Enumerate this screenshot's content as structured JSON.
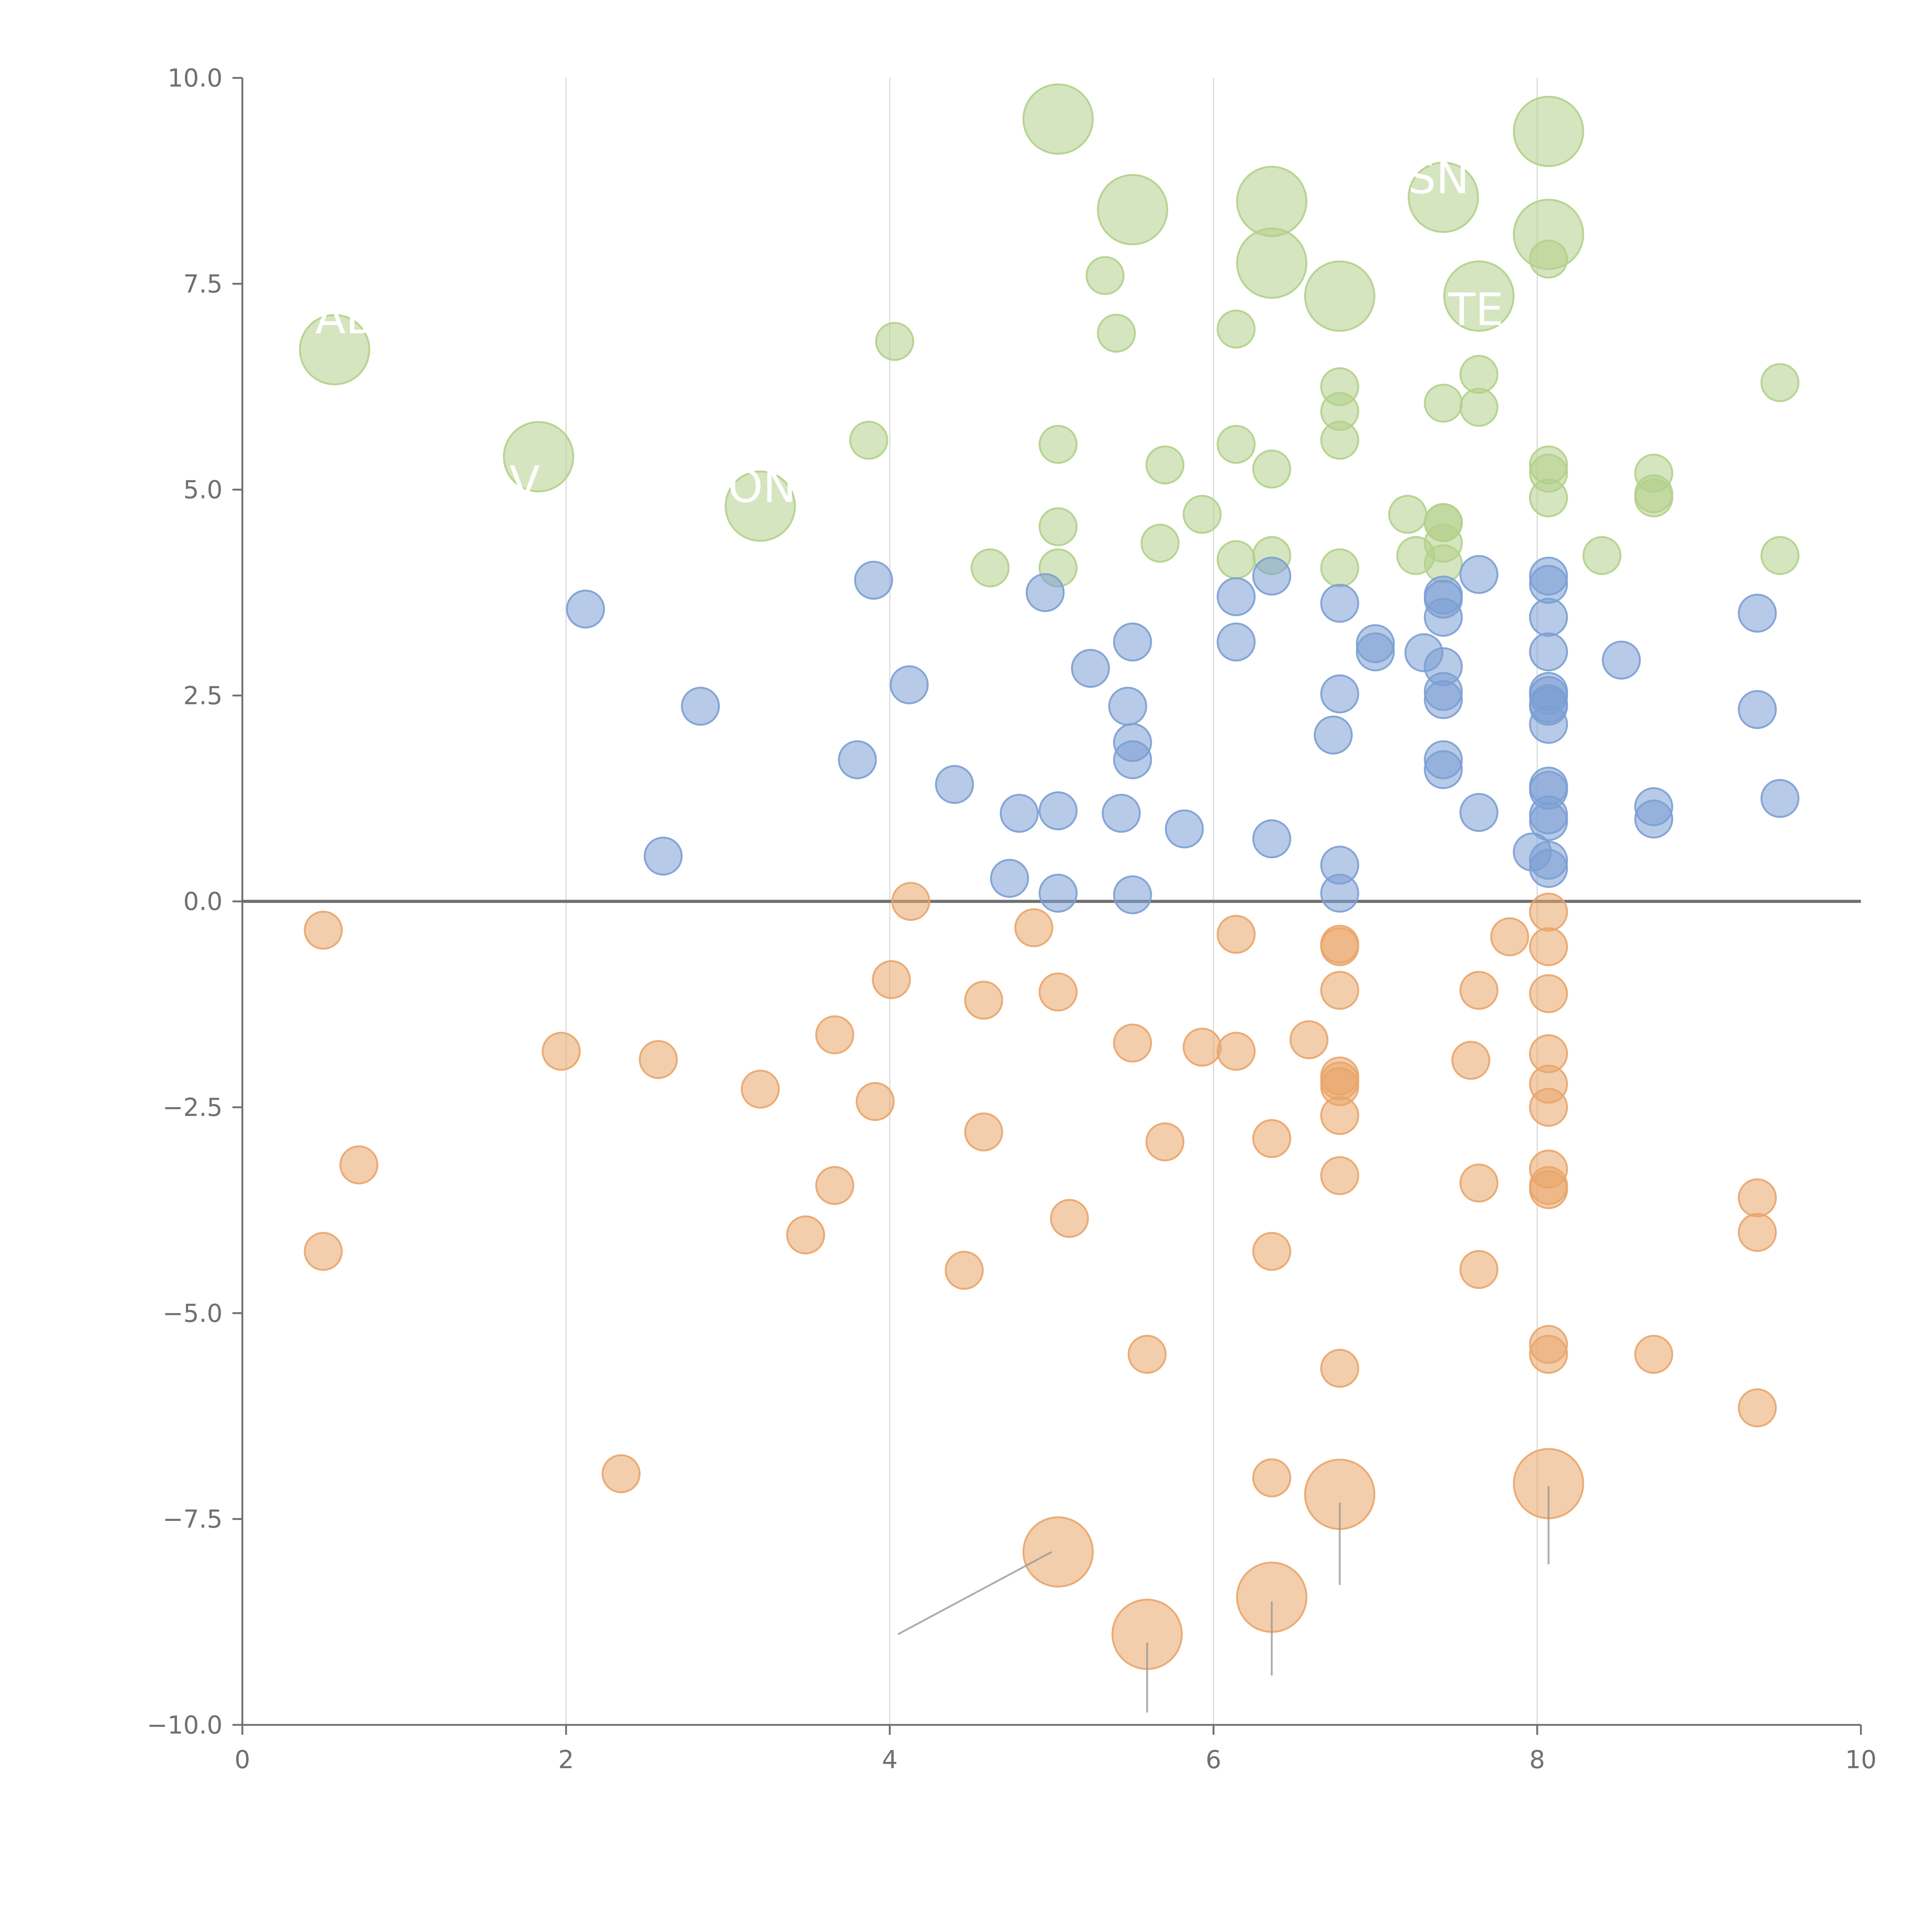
{
  "chart_data": {
    "type": "scatter",
    "title": "",
    "xlabel": "",
    "ylabel": "",
    "xlim": [
      0,
      10
    ],
    "ylim": [
      -10,
      10
    ],
    "grid": "vertical at x ticks",
    "x_ticks": [
      "0",
      "2",
      "4",
      "6",
      "8",
      "10"
    ],
    "y_ticks": [
      "10.0",
      "7.5",
      "5.0",
      "2.5",
      "0.0",
      "−2.5",
      "−5.0",
      "−7.5",
      "−10.0"
    ],
    "y_tick_values": [
      10,
      7.5,
      5,
      2.5,
      0,
      -2.5,
      -5,
      -7.5,
      -10
    ],
    "x_tick_values": [
      0,
      2,
      4,
      6,
      8,
      10
    ],
    "colors": {
      "green": "#b3d08a",
      "blue": "#7b9fd3",
      "orange": "#e9a56a"
    },
    "series": [
      {
        "name": "green",
        "color": "#b3d08a",
        "points": [
          [
            0.57,
            6.7,
            3.5
          ],
          [
            1.83,
            5.4,
            3.5
          ],
          [
            3.2,
            4.8,
            3.5
          ],
          [
            5.04,
            9.5,
            3.5
          ],
          [
            5.5,
            8.4,
            3.5
          ],
          [
            6.36,
            8.5,
            3.5
          ],
          [
            6.36,
            7.75,
            3.5
          ],
          [
            6.78,
            7.35,
            3.5
          ],
          [
            7.42,
            8.55,
            3.5
          ],
          [
            7.64,
            7.35,
            3.5
          ],
          [
            8.07,
            9.35,
            3.5
          ],
          [
            8.07,
            8.1,
            3.5
          ],
          [
            4.03,
            6.8,
            1
          ],
          [
            5.33,
            7.6,
            1
          ],
          [
            5.4,
            6.9,
            1
          ],
          [
            6.14,
            6.95,
            1
          ],
          [
            3.87,
            5.6,
            1
          ],
          [
            5.04,
            5.55,
            1
          ],
          [
            5.7,
            5.3,
            1
          ],
          [
            6.14,
            5.55,
            1
          ],
          [
            6.36,
            5.25,
            1
          ],
          [
            6.78,
            6.25,
            1
          ],
          [
            6.78,
            5.95,
            1
          ],
          [
            6.78,
            5.6,
            1
          ],
          [
            7.42,
            6.05,
            1
          ],
          [
            7.64,
            6.4,
            1
          ],
          [
            7.64,
            6.0,
            1
          ],
          [
            8.07,
            7.8,
            1
          ],
          [
            8.07,
            5.3,
            1
          ],
          [
            8.07,
            5.2,
            1
          ],
          [
            8.07,
            4.9,
            1
          ],
          [
            8.72,
            5.2,
            1
          ],
          [
            8.72,
            4.95,
            1
          ],
          [
            8.72,
            4.9,
            1
          ],
          [
            9.5,
            6.3,
            1
          ],
          [
            9.5,
            4.2,
            1
          ],
          [
            8.4,
            4.2,
            1
          ],
          [
            4.62,
            4.05,
            1
          ],
          [
            5.04,
            4.55,
            1
          ],
          [
            5.04,
            4.05,
            1
          ],
          [
            5.67,
            4.35,
            1
          ],
          [
            5.93,
            4.7,
            1
          ],
          [
            6.14,
            4.15,
            1
          ],
          [
            6.36,
            4.2,
            1
          ],
          [
            6.78,
            4.05,
            1
          ],
          [
            7.2,
            4.7,
            1
          ],
          [
            7.25,
            4.2,
            1
          ],
          [
            7.42,
            4.6,
            1
          ],
          [
            7.42,
            4.6,
            1
          ],
          [
            7.42,
            4.35,
            1
          ],
          [
            7.42,
            4.1,
            1
          ]
        ]
      },
      {
        "name": "blue",
        "color": "#7b9fd3",
        "points": [
          [
            2.12,
            3.55,
            1
          ],
          [
            2.83,
            2.37,
            1
          ],
          [
            2.6,
            0.55,
            1
          ],
          [
            3.8,
            1.72,
            1
          ],
          [
            3.9,
            3.9,
            1
          ],
          [
            4.12,
            2.63,
            1
          ],
          [
            4.4,
            1.42,
            1
          ],
          [
            4.74,
            0.28,
            1
          ],
          [
            4.8,
            1.07,
            1
          ],
          [
            4.96,
            3.75,
            1
          ],
          [
            5.04,
            1.1,
            1
          ],
          [
            5.04,
            0.1,
            1
          ],
          [
            5.24,
            2.83,
            1
          ],
          [
            5.43,
            1.07,
            1
          ],
          [
            5.47,
            2.37,
            1
          ],
          [
            5.5,
            3.15,
            1
          ],
          [
            5.5,
            1.93,
            1
          ],
          [
            5.5,
            1.72,
            1
          ],
          [
            5.5,
            0.08,
            1
          ],
          [
            5.82,
            0.88,
            1
          ],
          [
            6.14,
            3.7,
            1
          ],
          [
            6.14,
            3.15,
            1
          ],
          [
            6.36,
            3.95,
            1
          ],
          [
            6.36,
            0.76,
            1
          ],
          [
            6.74,
            2.02,
            1
          ],
          [
            6.78,
            3.62,
            1
          ],
          [
            6.78,
            2.52,
            1
          ],
          [
            6.78,
            0.44,
            1
          ],
          [
            6.78,
            0.1,
            1
          ],
          [
            7.0,
            3.13,
            1
          ],
          [
            7.0,
            3.03,
            1
          ],
          [
            7.3,
            3.02,
            1
          ],
          [
            7.42,
            3.72,
            1
          ],
          [
            7.42,
            3.67,
            1
          ],
          [
            7.42,
            3.45,
            1
          ],
          [
            7.42,
            2.85,
            1
          ],
          [
            7.42,
            2.55,
            1
          ],
          [
            7.42,
            2.45,
            1
          ],
          [
            7.42,
            1.72,
            1
          ],
          [
            7.42,
            1.6,
            1
          ],
          [
            7.64,
            3.97,
            1
          ],
          [
            7.64,
            1.08,
            1
          ],
          [
            7.97,
            0.6,
            1
          ],
          [
            8.07,
            3.95,
            1
          ],
          [
            8.07,
            3.85,
            1
          ],
          [
            8.07,
            3.45,
            1
          ],
          [
            8.07,
            3.03,
            1
          ],
          [
            8.07,
            2.55,
            1
          ],
          [
            8.07,
            2.5,
            1
          ],
          [
            8.07,
            2.4,
            1
          ],
          [
            8.07,
            2.37,
            1
          ],
          [
            8.07,
            2.15,
            1
          ],
          [
            8.07,
            1.4,
            1
          ],
          [
            8.07,
            1.35,
            1
          ],
          [
            8.07,
            1.05,
            1
          ],
          [
            8.07,
            0.97,
            1
          ],
          [
            8.07,
            0.5,
            1
          ],
          [
            8.07,
            0.4,
            1
          ],
          [
            8.52,
            2.93,
            1
          ],
          [
            8.72,
            1.15,
            1
          ],
          [
            8.72,
            1.0,
            1
          ],
          [
            9.36,
            3.5,
            1
          ],
          [
            9.36,
            2.33,
            1
          ],
          [
            9.5,
            1.25,
            1
          ]
        ]
      },
      {
        "name": "orange",
        "color": "#e9a56a",
        "points": [
          [
            0.5,
            -0.35,
            1
          ],
          [
            0.5,
            -4.25,
            1
          ],
          [
            0.72,
            -3.2,
            1
          ],
          [
            1.97,
            -1.82,
            1
          ],
          [
            2.57,
            -1.92,
            1
          ],
          [
            2.34,
            -6.95,
            1
          ],
          [
            3.2,
            -2.28,
            1
          ],
          [
            3.48,
            -4.05,
            1
          ],
          [
            3.66,
            -1.62,
            1
          ],
          [
            3.66,
            -3.45,
            1
          ],
          [
            3.91,
            -2.43,
            1
          ],
          [
            4.01,
            -0.95,
            1
          ],
          [
            4.13,
            0.0,
            1
          ],
          [
            4.46,
            -4.48,
            1
          ],
          [
            4.58,
            -1.2,
            1
          ],
          [
            4.58,
            -2.8,
            1
          ],
          [
            4.89,
            -0.32,
            1
          ],
          [
            5.04,
            -1.1,
            1
          ],
          [
            5.11,
            -3.85,
            1
          ],
          [
            5.5,
            -1.72,
            1
          ],
          [
            5.59,
            -5.5,
            1
          ],
          [
            5.7,
            -2.92,
            1
          ],
          [
            5.93,
            -1.77,
            1
          ],
          [
            6.14,
            -0.4,
            1
          ],
          [
            6.14,
            -1.82,
            1
          ],
          [
            6.36,
            -2.88,
            1
          ],
          [
            6.36,
            -4.25,
            1
          ],
          [
            6.36,
            -7.0,
            1
          ],
          [
            6.59,
            -1.68,
            1
          ],
          [
            6.78,
            -0.52,
            1
          ],
          [
            6.78,
            -0.55,
            1
          ],
          [
            6.78,
            -1.08,
            1
          ],
          [
            6.78,
            -2.12,
            1
          ],
          [
            6.78,
            -2.18,
            1
          ],
          [
            6.78,
            -2.25,
            1
          ],
          [
            6.78,
            -2.6,
            1
          ],
          [
            6.78,
            -3.33,
            1
          ],
          [
            6.78,
            -5.67,
            1
          ],
          [
            7.59,
            -1.93,
            1
          ],
          [
            7.64,
            -1.08,
            1
          ],
          [
            7.64,
            -3.42,
            1
          ],
          [
            7.64,
            -4.47,
            1
          ],
          [
            7.83,
            -0.43,
            1
          ],
          [
            8.07,
            -0.13,
            1
          ],
          [
            8.07,
            -0.55,
            1
          ],
          [
            8.07,
            -1.12,
            1
          ],
          [
            8.07,
            -1.85,
            1
          ],
          [
            8.07,
            -2.22,
            1
          ],
          [
            8.07,
            -2.5,
            1
          ],
          [
            8.07,
            -3.25,
            1
          ],
          [
            8.07,
            -3.45,
            1
          ],
          [
            8.07,
            -3.5,
            1
          ],
          [
            8.07,
            -5.38,
            1
          ],
          [
            8.07,
            -5.5,
            1
          ],
          [
            8.72,
            -5.5,
            1
          ],
          [
            9.36,
            -3.6,
            1
          ],
          [
            9.36,
            -4.02,
            1
          ],
          [
            9.36,
            -6.15,
            1
          ],
          [
            5.04,
            -7.9,
            3.5
          ],
          [
            5.59,
            -8.9,
            3.5
          ],
          [
            6.36,
            -8.45,
            3.5
          ],
          [
            6.78,
            -7.2,
            3.5
          ],
          [
            8.07,
            -7.07,
            3.5
          ]
        ]
      }
    ],
    "annotations": [
      {
        "text": "AD",
        "x": 0.45,
        "y": 6.9
      },
      {
        "text": "V",
        "x": 1.65,
        "y": 4.9
      },
      {
        "text": "ONTR",
        "x": 3.0,
        "y": 4.85
      },
      {
        "text": "SN",
        "x": 7.2,
        "y": 8.6
      },
      {
        "text": "TE",
        "x": 7.45,
        "y": 7.0
      }
    ],
    "leader_lines": [
      [
        5.0,
        -7.9,
        4.05,
        -8.9
      ],
      [
        5.59,
        -9.0,
        5.59,
        -9.85
      ],
      [
        6.36,
        -8.5,
        6.36,
        -9.4
      ],
      [
        6.78,
        -7.3,
        6.78,
        -8.3
      ],
      [
        8.07,
        -7.1,
        8.07,
        -8.05
      ]
    ]
  }
}
